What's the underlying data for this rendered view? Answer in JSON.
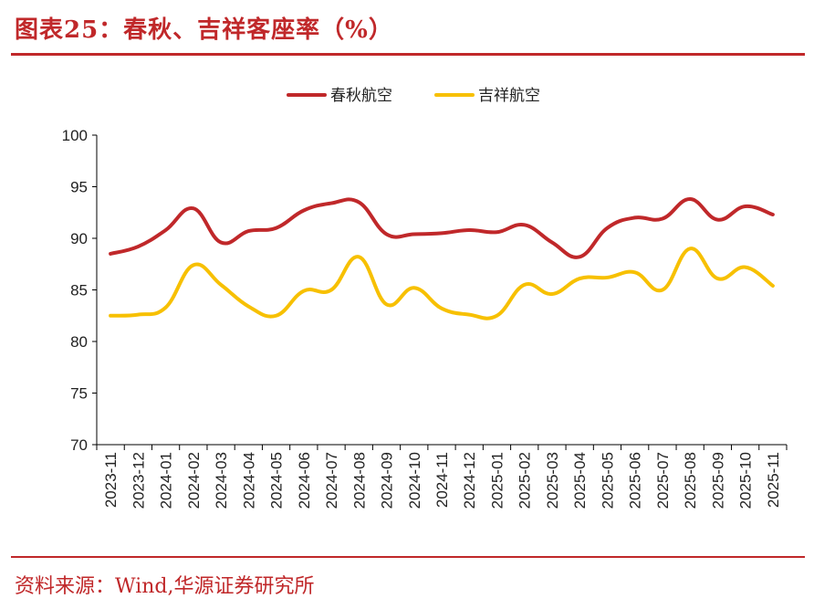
{
  "header": {
    "title": "图表25：春秋、吉祥客座率（%）"
  },
  "footer": {
    "source": "资料来源：Wind,华源证券研究所"
  },
  "chart_data": {
    "type": "line",
    "title": "图表25：春秋、吉祥客座率（%）",
    "xlabel": "",
    "ylabel": "",
    "ylim": [
      70,
      100
    ],
    "yticks": [
      70,
      75,
      80,
      85,
      90,
      95,
      100
    ],
    "legend_position": "top-center",
    "grid": false,
    "categories": [
      "2023-11",
      "2023-12",
      "2024-01",
      "2024-02",
      "2024-03",
      "2024-04",
      "2024-05",
      "2024-06",
      "2024-07",
      "2024-08",
      "2024-09",
      "2024-10",
      "2024-11",
      "2024-12",
      "2025-01",
      "2025-02",
      "2025-03",
      "2025-04",
      "2025-05",
      "2025-06",
      "2025-07",
      "2025-08",
      "2025-09",
      "2025-10",
      "2025-11"
    ],
    "series": [
      {
        "name": "春秋航空",
        "color": "#c0282a",
        "values": [
          88.5,
          89.2,
          90.8,
          92.9,
          89.6,
          90.7,
          91.0,
          92.7,
          93.4,
          93.5,
          90.4,
          90.4,
          90.5,
          90.8,
          90.6,
          91.3,
          89.6,
          88.2,
          91.0,
          92.0,
          91.9,
          93.8,
          91.8,
          93.1,
          92.3
        ]
      },
      {
        "name": "吉祥航空",
        "color": "#f7c000",
        "values": [
          82.5,
          82.6,
          83.3,
          87.4,
          85.5,
          83.4,
          82.5,
          84.9,
          85.0,
          88.2,
          83.6,
          85.2,
          83.2,
          82.6,
          82.5,
          85.5,
          84.6,
          86.1,
          86.2,
          86.7,
          85.0,
          89.0,
          86.1,
          87.2,
          85.4
        ]
      }
    ]
  }
}
